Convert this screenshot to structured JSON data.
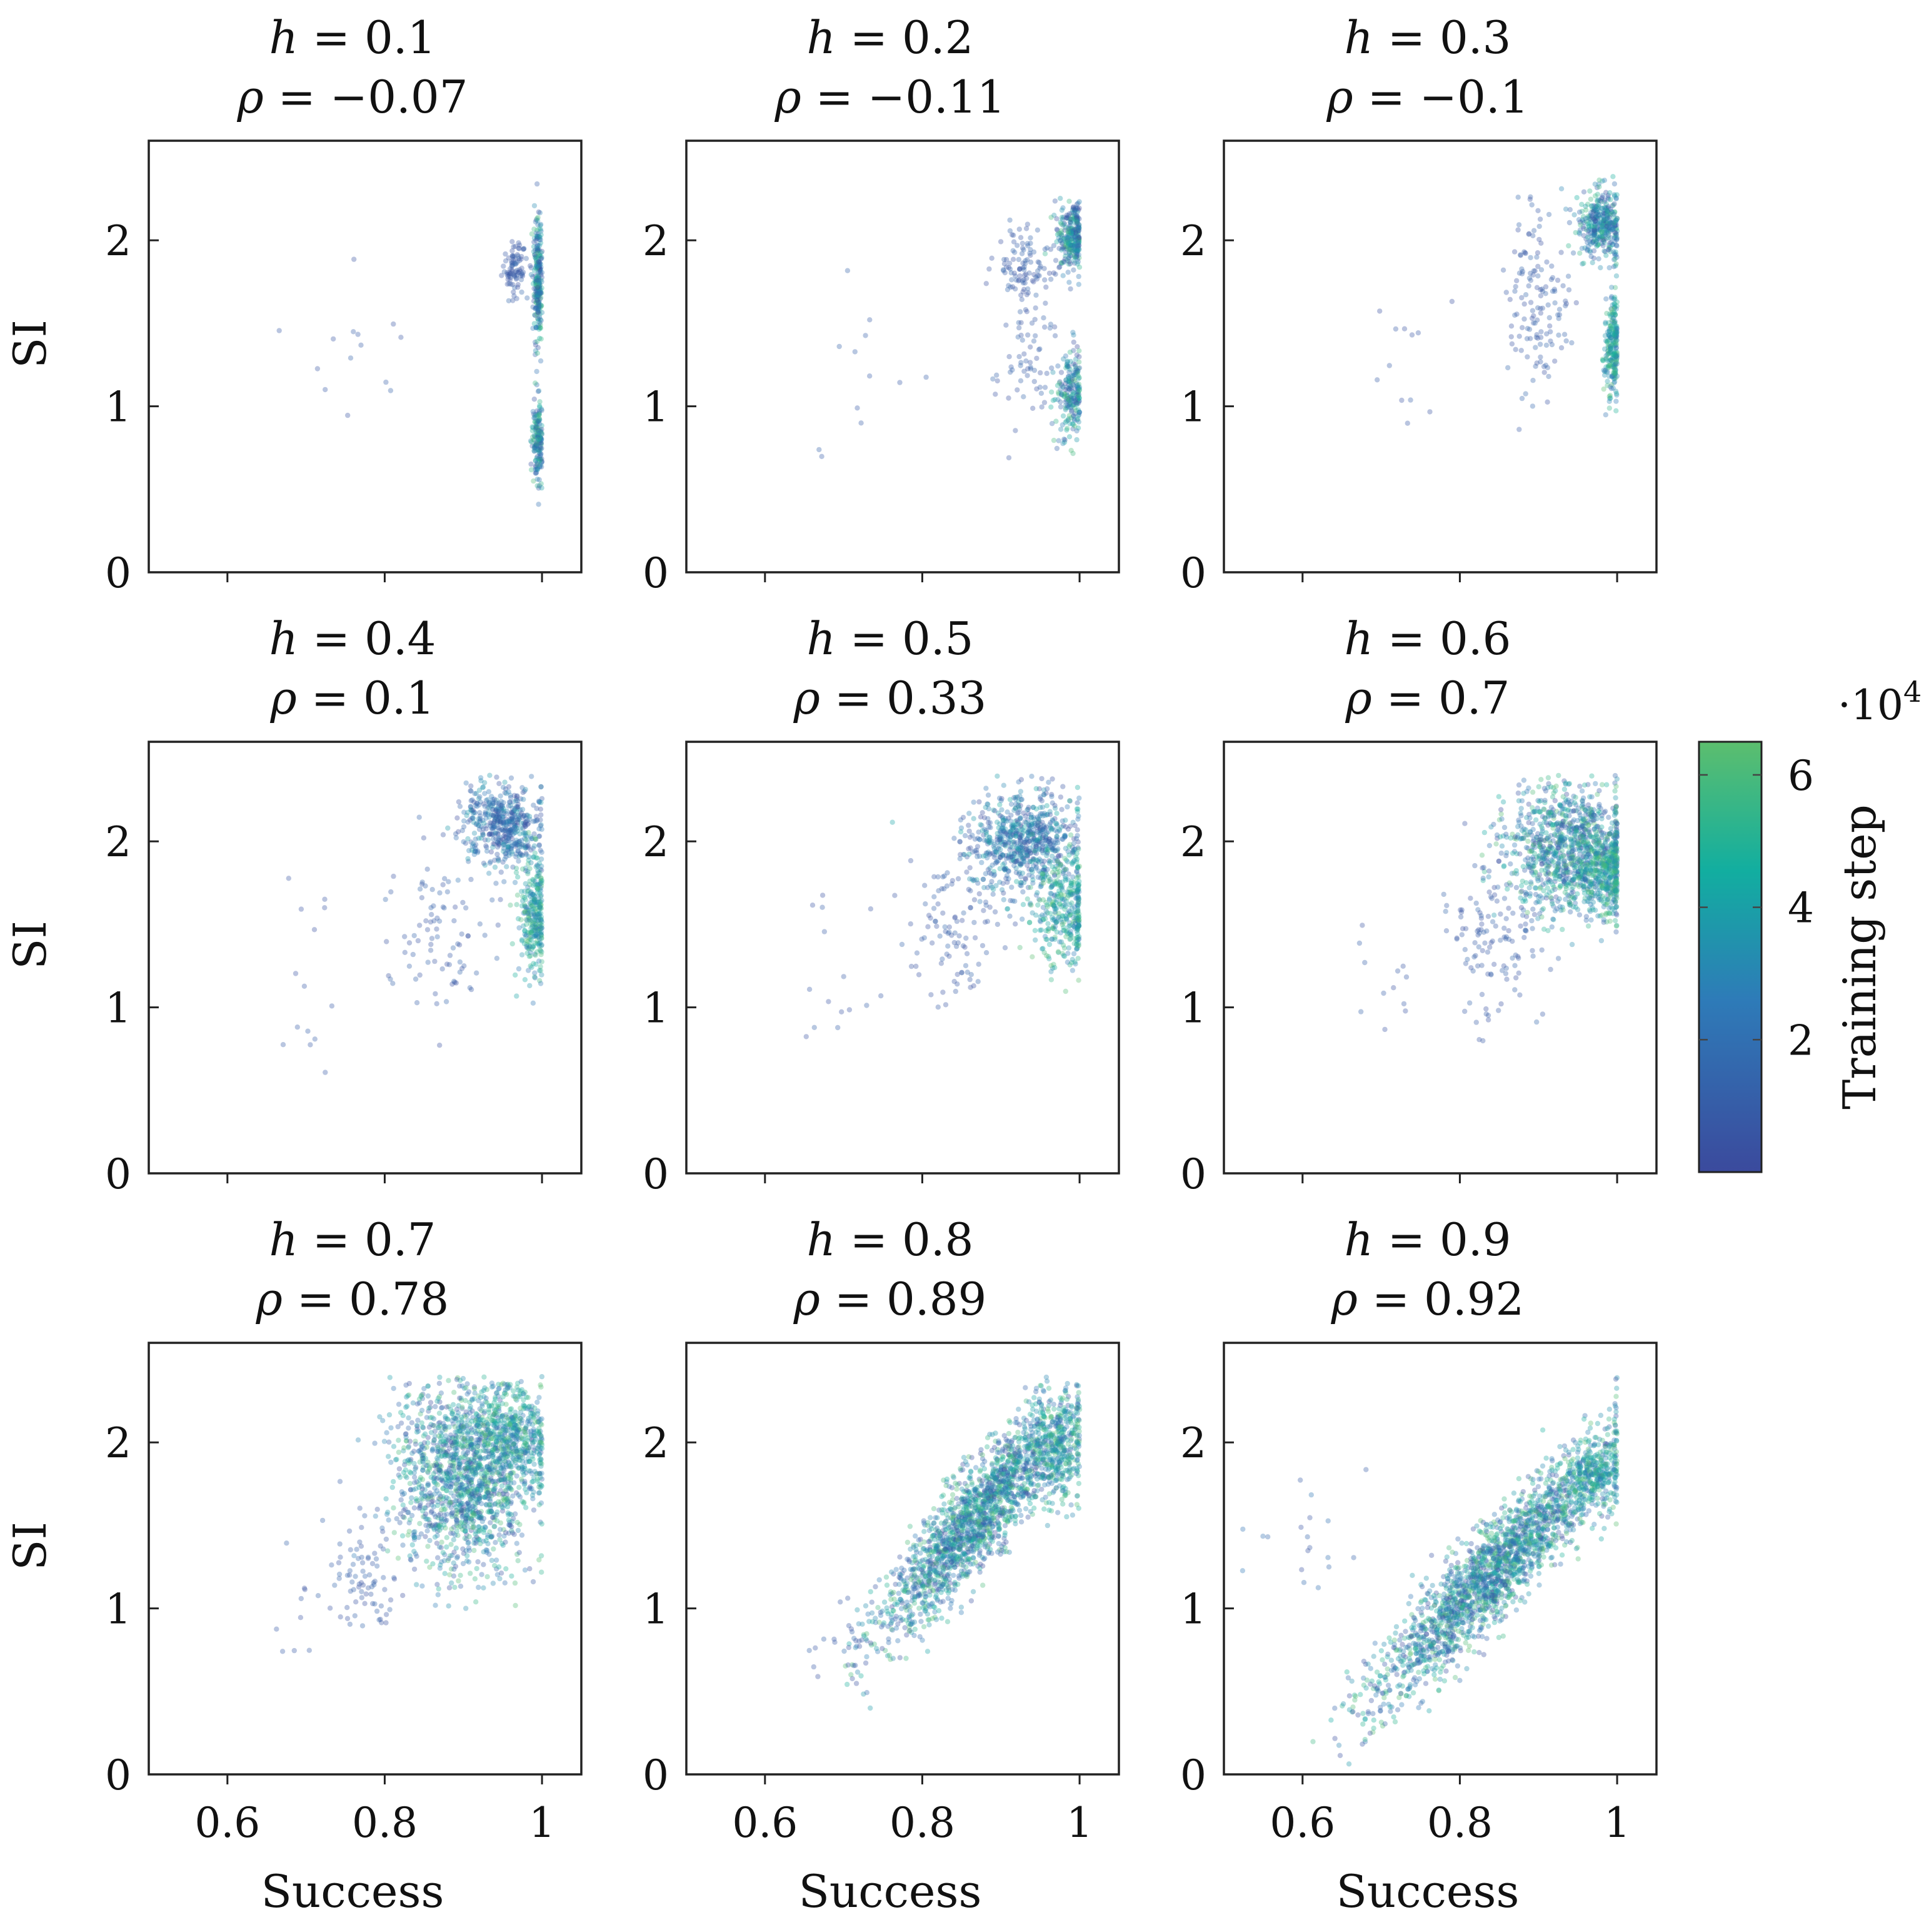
{
  "chart_data": {
    "type": "scatter",
    "layout": "3x3 grid of scatter plots with shared colorbar",
    "xlabel": "Success",
    "ylabel": "SI",
    "xlim": [
      0.5,
      1.05
    ],
    "ylim": [
      0,
      2.6
    ],
    "xticks": [
      0.6,
      0.8,
      1
    ],
    "xtick_labels": [
      "0.6",
      "0.8",
      "1"
    ],
    "yticks": [
      0,
      1,
      2
    ],
    "ytick_labels": [
      "0",
      "1",
      "2"
    ],
    "panels": [
      {
        "h_label": "h",
        "h_value": "= 0.1",
        "rho_label": "ρ",
        "rho_value": "= −0.07",
        "clusters": [
          {
            "x": 0.965,
            "y": 1.83,
            "sx": 0.008,
            "sy": 0.08,
            "n": 90,
            "t": [
              0.05,
              0.25
            ]
          },
          {
            "x": 0.995,
            "y": 1.75,
            "sx": 0.003,
            "sy": 0.18,
            "n": 260,
            "t": [
              0.0,
              0.95
            ]
          },
          {
            "x": 0.995,
            "y": 0.78,
            "sx": 0.004,
            "sy": 0.13,
            "n": 170,
            "t": [
              0.0,
              0.95
            ]
          },
          {
            "x": 0.78,
            "y": 1.35,
            "sx": 0.04,
            "sy": 0.3,
            "n": 14,
            "t": [
              0.05,
              0.2
            ]
          }
        ]
      },
      {
        "h_label": "h",
        "h_value": "= 0.2",
        "rho_label": "ρ",
        "rho_value": "= −0.11",
        "clusters": [
          {
            "x": 0.99,
            "y": 2.03,
            "sx": 0.01,
            "sy": 0.1,
            "n": 280,
            "t": [
              0.0,
              0.95
            ]
          },
          {
            "x": 0.99,
            "y": 1.08,
            "sx": 0.01,
            "sy": 0.14,
            "n": 220,
            "t": [
              0.0,
              0.95
            ]
          },
          {
            "x": 0.93,
            "y": 1.85,
            "sx": 0.02,
            "sy": 0.12,
            "n": 110,
            "t": [
              0.05,
              0.25
            ]
          },
          {
            "x": 0.93,
            "y": 1.2,
            "sx": 0.02,
            "sy": 0.2,
            "n": 60,
            "t": [
              0.05,
              0.25
            ]
          },
          {
            "x": 0.7,
            "y": 1.3,
            "sx": 0.04,
            "sy": 0.3,
            "n": 12,
            "t": [
              0.05,
              0.2
            ]
          }
        ]
      },
      {
        "h_label": "h",
        "h_value": "= 0.3",
        "rho_label": "ρ",
        "rho_value": "= −0.1",
        "clusters": [
          {
            "x": 0.98,
            "y": 2.1,
            "sx": 0.015,
            "sy": 0.1,
            "n": 360,
            "t": [
              0.0,
              0.9
            ]
          },
          {
            "x": 0.995,
            "y": 1.35,
            "sx": 0.006,
            "sy": 0.15,
            "n": 240,
            "t": [
              0.3,
              1.0
            ]
          },
          {
            "x": 0.9,
            "y": 1.6,
            "sx": 0.02,
            "sy": 0.3,
            "n": 140,
            "t": [
              0.05,
              0.25
            ]
          },
          {
            "x": 0.72,
            "y": 1.3,
            "sx": 0.03,
            "sy": 0.3,
            "n": 12,
            "t": [
              0.05,
              0.2
            ]
          }
        ]
      },
      {
        "h_label": "h",
        "h_value": "= 0.4",
        "rho_label": "ρ",
        "rho_value": "= 0.1",
        "clusters": [
          {
            "x": 0.95,
            "y": 2.1,
            "sx": 0.025,
            "sy": 0.12,
            "n": 500,
            "t": [
              0.0,
              0.6
            ]
          },
          {
            "x": 0.99,
            "y": 1.55,
            "sx": 0.01,
            "sy": 0.18,
            "n": 300,
            "t": [
              0.35,
              1.0
            ]
          },
          {
            "x": 0.87,
            "y": 1.5,
            "sx": 0.03,
            "sy": 0.3,
            "n": 90,
            "t": [
              0.05,
              0.25
            ]
          },
          {
            "x": 0.7,
            "y": 1.3,
            "sx": 0.03,
            "sy": 0.3,
            "n": 14,
            "t": [
              0.05,
              0.2
            ]
          }
        ]
      },
      {
        "h_label": "h",
        "h_value": "= 0.5",
        "rho_label": "ρ",
        "rho_value": "= 0.33",
        "clusters": [
          {
            "x": 0.93,
            "y": 2.0,
            "sx": 0.035,
            "sy": 0.15,
            "n": 700,
            "t": [
              0.0,
              0.7
            ]
          },
          {
            "x": 0.98,
            "y": 1.6,
            "sx": 0.02,
            "sy": 0.18,
            "n": 360,
            "t": [
              0.35,
              1.0
            ]
          },
          {
            "x": 0.84,
            "y": 1.5,
            "sx": 0.03,
            "sy": 0.25,
            "n": 110,
            "t": [
              0.05,
              0.25
            ]
          },
          {
            "x": 0.7,
            "y": 1.2,
            "sx": 0.04,
            "sy": 0.3,
            "n": 14,
            "t": [
              0.05,
              0.2
            ]
          }
        ]
      },
      {
        "h_label": "h",
        "h_value": "= 0.6",
        "rho_label": "ρ",
        "rho_value": "= 0.7",
        "clusters": [
          {
            "x": 0.94,
            "y": 1.95,
            "sx": 0.04,
            "sy": 0.2,
            "n": 1100,
            "t": [
              0.0,
              1.0
            ]
          },
          {
            "x": 0.985,
            "y": 1.8,
            "sx": 0.015,
            "sy": 0.12,
            "n": 250,
            "t": [
              0.4,
              1.0
            ]
          },
          {
            "x": 0.84,
            "y": 1.4,
            "sx": 0.03,
            "sy": 0.25,
            "n": 120,
            "t": [
              0.05,
              0.25
            ]
          },
          {
            "x": 0.7,
            "y": 1.1,
            "sx": 0.03,
            "sy": 0.25,
            "n": 12,
            "t": [
              0.05,
              0.2
            ]
          }
        ]
      },
      {
        "h_label": "h",
        "h_value": "= 0.7",
        "rho_label": "ρ",
        "rho_value": "= 0.78",
        "clusters": [
          {
            "x": 0.9,
            "y": 1.8,
            "sx": 0.045,
            "sy": 0.28,
            "n": 1500,
            "t": [
              0.0,
              1.0
            ]
          },
          {
            "x": 0.96,
            "y": 2.05,
            "sx": 0.025,
            "sy": 0.15,
            "n": 400,
            "t": [
              0.3,
              1.0
            ]
          },
          {
            "x": 0.77,
            "y": 1.2,
            "sx": 0.02,
            "sy": 0.18,
            "n": 80,
            "t": [
              0.05,
              0.25
            ]
          },
          {
            "x": 0.69,
            "y": 1.0,
            "sx": 0.015,
            "sy": 0.2,
            "n": 10,
            "t": [
              0.05,
              0.2
            ]
          }
        ]
      },
      {
        "h_label": "h",
        "h_value": "= 0.8",
        "rho_label": "ρ",
        "rho_value": "= 0.89",
        "clusters": [
          {
            "x": 0.87,
            "y": 1.55,
            "sx": 0.06,
            "sy": 0.35,
            "n": 1800,
            "t": [
              0.0,
              1.0
            ],
            "rho": 0.89
          },
          {
            "x": 0.97,
            "y": 1.95,
            "sx": 0.02,
            "sy": 0.15,
            "n": 350,
            "t": [
              0.3,
              1.0
            ]
          },
          {
            "x": 0.7,
            "y": 0.8,
            "sx": 0.02,
            "sy": 0.1,
            "n": 20,
            "t": [
              0.05,
              0.2
            ]
          }
        ]
      },
      {
        "h_label": "h",
        "h_value": "= 0.9",
        "rho_label": "ρ",
        "rho_value": "= 0.92",
        "clusters": [
          {
            "x": 0.84,
            "y": 1.2,
            "sx": 0.075,
            "sy": 0.38,
            "n": 2000,
            "t": [
              0.0,
              1.0
            ],
            "rho": 0.92
          },
          {
            "x": 0.97,
            "y": 1.8,
            "sx": 0.02,
            "sy": 0.12,
            "n": 300,
            "t": [
              0.3,
              1.0
            ]
          },
          {
            "x": 0.6,
            "y": 1.4,
            "sx": 0.04,
            "sy": 0.15,
            "n": 20,
            "t": [
              0.05,
              0.4
            ]
          }
        ]
      }
    ],
    "colorbar": {
      "label": "Training step",
      "scale_label": "·10",
      "scale_exponent": "4",
      "range": [
        0,
        6.5
      ],
      "ticks": [
        2,
        4,
        6
      ],
      "tick_labels": [
        "2",
        "4",
        "6"
      ],
      "colors": [
        "#3b4a9d",
        "#2e7bb8",
        "#12aea0",
        "#5cbe6e"
      ]
    }
  }
}
